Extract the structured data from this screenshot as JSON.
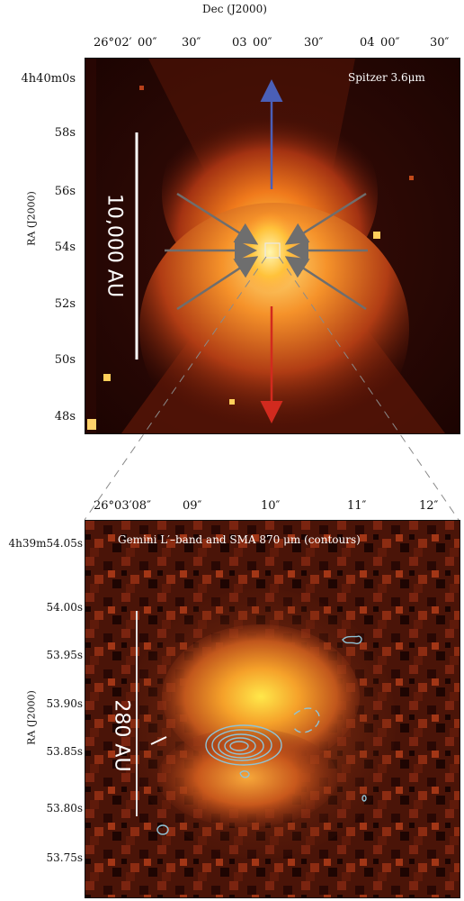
{
  "figure": {
    "top_axis_title": "Dec (J2000)",
    "top_panel": {
      "x_ticks": [
        "26°02′ 00″",
        "30″",
        "03 00″",
        "30″",
        "04 00″",
        "30″"
      ],
      "y_axis_title": "RA (J2000)",
      "y_ticks": [
        "4h40m0s",
        "58s",
        "56s",
        "54s",
        "52s",
        "50s",
        "48s"
      ],
      "label": "Spitzer 3.6μm",
      "scale_bar": "10,000 AU",
      "arrow_colors": {
        "up": "#4a5fb8",
        "down": "#d12a1e",
        "inflow": "#6e6e6e"
      }
    },
    "bottom_panel": {
      "x_ticks": [
        "26°03′08″",
        "09″",
        "10″",
        "11″",
        "12″"
      ],
      "y_axis_title": "RA (J2000)",
      "y_ticks": [
        "4h39m54.05s",
        "54.00s",
        "53.95s",
        "53.90s",
        "53.85s",
        "53.80s",
        "53.75s"
      ],
      "label": "Gemini L′–band and SMA 870 μm (contours)",
      "scale_bar": "280 AU",
      "contour_color": "#8fc3d6"
    }
  }
}
